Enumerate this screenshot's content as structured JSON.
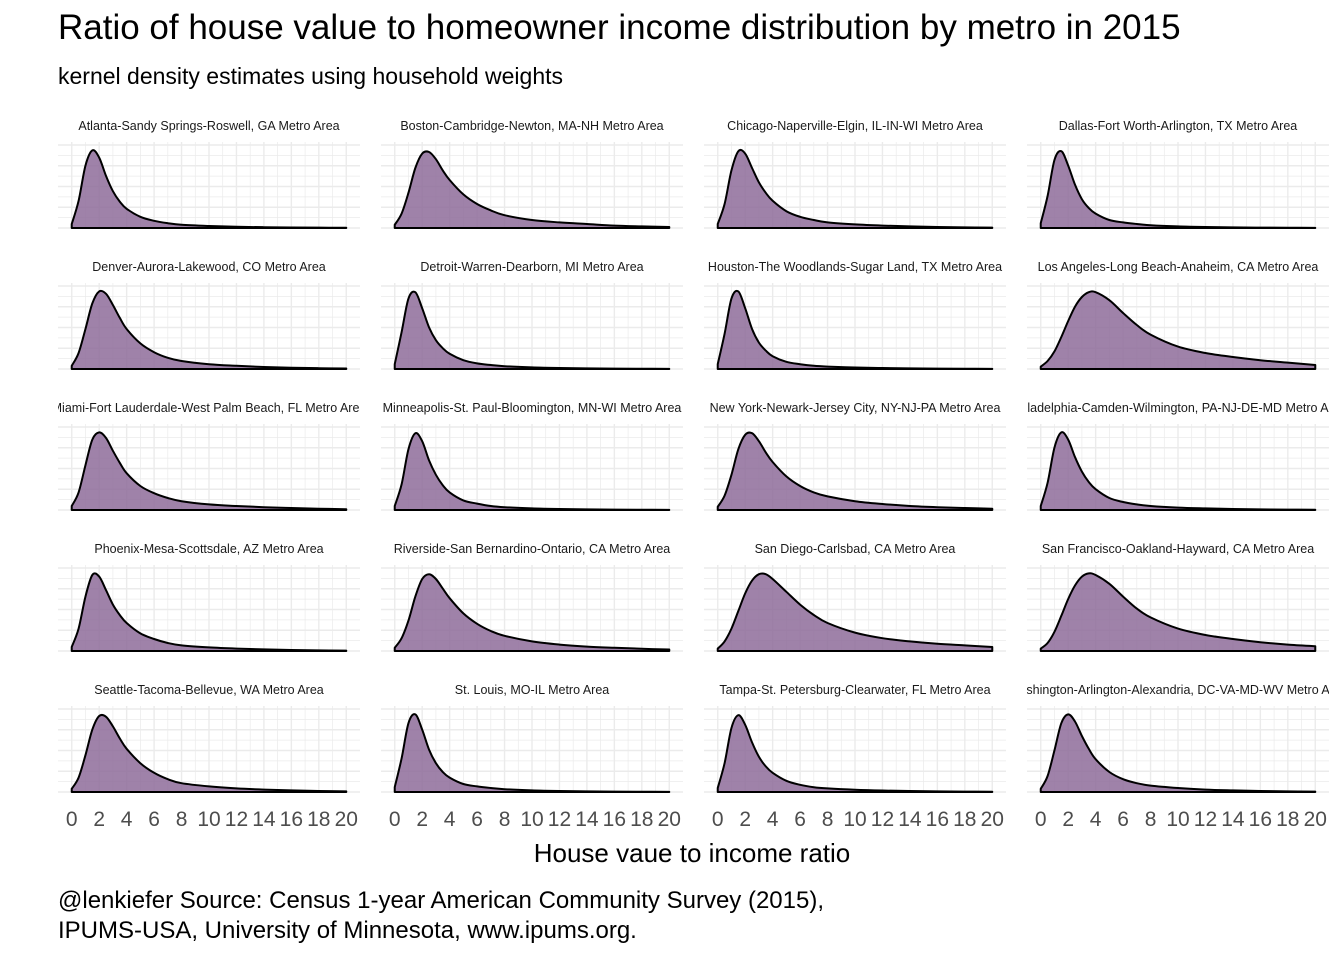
{
  "chart_data": {
    "type": "area",
    "title": "Ratio of house value to homeowner income distribution by metro in 2015",
    "subtitle": "kernel density estimates using household weights",
    "xlabel": "House vaue to income ratio",
    "ylabel": "",
    "xlim": [
      -1,
      21
    ],
    "x_ticks": [
      0,
      2,
      4,
      6,
      8,
      10,
      12,
      14,
      16,
      18,
      20
    ],
    "grid": true,
    "legend": "none",
    "fill_color": "#8e6c9a",
    "line_color": "#000000",
    "grid_color": "#ebebeb",
    "caption": [
      "@lenkiefer Source: Census 1-year American Community Survey (2015),",
      "IPUMS-USA, University of Minnesota, www.ipums.org."
    ],
    "x": [
      0,
      0.5,
      1,
      1.5,
      2,
      2.5,
      3,
      3.5,
      4,
      5,
      6,
      7,
      8,
      10,
      12,
      14,
      16,
      18,
      20
    ],
    "panels": [
      {
        "name": "Atlanta-Sandy Springs-Roswell, GA Metro Area",
        "density": [
          0.05,
          0.34,
          0.78,
          0.97,
          0.88,
          0.65,
          0.46,
          0.33,
          0.24,
          0.14,
          0.09,
          0.06,
          0.04,
          0.025,
          0.015,
          0.01,
          0.006,
          0.004,
          0.003
        ]
      },
      {
        "name": "Boston-Cambridge-Newton, MA-NH Metro Area",
        "density": [
          0.04,
          0.18,
          0.44,
          0.75,
          0.93,
          0.95,
          0.86,
          0.72,
          0.6,
          0.42,
          0.3,
          0.22,
          0.16,
          0.1,
          0.07,
          0.05,
          0.03,
          0.02,
          0.012
        ]
      },
      {
        "name": "Chicago-Naperville-Elgin, IL-IN-WI Metro Area",
        "density": [
          0.05,
          0.3,
          0.72,
          0.96,
          0.93,
          0.75,
          0.57,
          0.44,
          0.34,
          0.21,
          0.14,
          0.1,
          0.07,
          0.045,
          0.03,
          0.02,
          0.013,
          0.008,
          0.005
        ]
      },
      {
        "name": "Dallas-Fort Worth-Arlington, TX Metro Area",
        "density": [
          0.06,
          0.4,
          0.85,
          0.96,
          0.78,
          0.54,
          0.36,
          0.25,
          0.18,
          0.1,
          0.07,
          0.05,
          0.035,
          0.02,
          0.012,
          0.008,
          0.005,
          0.003,
          0.002
        ]
      },
      {
        "name": "Denver-Aurora-Lakewood, CO Metro Area",
        "density": [
          0.04,
          0.2,
          0.5,
          0.82,
          0.97,
          0.94,
          0.8,
          0.64,
          0.5,
          0.32,
          0.21,
          0.14,
          0.1,
          0.06,
          0.04,
          0.025,
          0.015,
          0.01,
          0.006
        ]
      },
      {
        "name": "Detroit-Warren-Dearborn, MI Metro Area",
        "density": [
          0.06,
          0.46,
          0.88,
          0.96,
          0.76,
          0.52,
          0.36,
          0.26,
          0.19,
          0.11,
          0.07,
          0.05,
          0.035,
          0.02,
          0.012,
          0.008,
          0.005,
          0.003,
          0.002
        ]
      },
      {
        "name": "Houston-The Woodlands-Sugar Land, TX Metro Area",
        "density": [
          0.06,
          0.44,
          0.88,
          0.97,
          0.76,
          0.5,
          0.33,
          0.23,
          0.16,
          0.09,
          0.06,
          0.04,
          0.03,
          0.018,
          0.012,
          0.008,
          0.005,
          0.003,
          0.002
        ]
      },
      {
        "name": "Los Angeles-Long Beach-Anaheim, CA Metro Area",
        "density": [
          0.03,
          0.1,
          0.22,
          0.4,
          0.6,
          0.78,
          0.9,
          0.96,
          0.96,
          0.86,
          0.7,
          0.55,
          0.43,
          0.28,
          0.2,
          0.15,
          0.11,
          0.08,
          0.05
        ]
      },
      {
        "name": "Miami-Fort Lauderdale-West Palm Beach, FL Metro Area",
        "density": [
          0.05,
          0.22,
          0.56,
          0.88,
          0.97,
          0.9,
          0.74,
          0.59,
          0.46,
          0.3,
          0.21,
          0.15,
          0.11,
          0.07,
          0.05,
          0.035,
          0.025,
          0.016,
          0.01
        ]
      },
      {
        "name": "Minneapolis-St. Paul-Bloomington, MN-WI Metro Area",
        "density": [
          0.05,
          0.32,
          0.76,
          0.96,
          0.86,
          0.62,
          0.44,
          0.31,
          0.22,
          0.12,
          0.08,
          0.05,
          0.035,
          0.02,
          0.012,
          0.008,
          0.005,
          0.003,
          0.002
        ]
      },
      {
        "name": "New York-Newark-Jersey City, NY-NJ-PA Metro Area",
        "density": [
          0.04,
          0.18,
          0.44,
          0.76,
          0.94,
          0.96,
          0.86,
          0.72,
          0.6,
          0.42,
          0.3,
          0.22,
          0.17,
          0.11,
          0.075,
          0.05,
          0.035,
          0.025,
          0.016
        ]
      },
      {
        "name": "Philadelphia-Camden-Wilmington, PA-NJ-DE-MD Metro Area",
        "density": [
          0.05,
          0.34,
          0.78,
          0.97,
          0.88,
          0.66,
          0.48,
          0.35,
          0.26,
          0.15,
          0.1,
          0.07,
          0.05,
          0.03,
          0.02,
          0.013,
          0.008,
          0.005,
          0.003
        ]
      },
      {
        "name": "Phoenix-Mesa-Scottsdale, AZ Metro Area",
        "density": [
          0.05,
          0.28,
          0.68,
          0.95,
          0.93,
          0.76,
          0.58,
          0.45,
          0.35,
          0.22,
          0.15,
          0.1,
          0.07,
          0.045,
          0.03,
          0.02,
          0.013,
          0.008,
          0.005
        ]
      },
      {
        "name": "Riverside-San Bernardino-Ontario, CA Metro Area",
        "density": [
          0.04,
          0.16,
          0.38,
          0.68,
          0.9,
          0.96,
          0.9,
          0.78,
          0.66,
          0.47,
          0.34,
          0.25,
          0.19,
          0.12,
          0.08,
          0.055,
          0.04,
          0.028,
          0.018
        ]
      },
      {
        "name": "San Diego-Carlsbad, CA Metro Area",
        "density": [
          0.03,
          0.12,
          0.28,
          0.5,
          0.72,
          0.88,
          0.96,
          0.96,
          0.9,
          0.74,
          0.58,
          0.45,
          0.35,
          0.23,
          0.16,
          0.12,
          0.09,
          0.07,
          0.05
        ]
      },
      {
        "name": "San Francisco-Oakland-Hayward, CA Metro Area",
        "density": [
          0.03,
          0.1,
          0.24,
          0.44,
          0.65,
          0.82,
          0.93,
          0.97,
          0.95,
          0.84,
          0.68,
          0.53,
          0.42,
          0.28,
          0.2,
          0.15,
          0.11,
          0.08,
          0.06
        ]
      },
      {
        "name": "Seattle-Tacoma-Bellevue, WA Metro Area",
        "density": [
          0.04,
          0.18,
          0.46,
          0.78,
          0.95,
          0.94,
          0.82,
          0.67,
          0.54,
          0.36,
          0.24,
          0.16,
          0.11,
          0.07,
          0.045,
          0.03,
          0.02,
          0.013,
          0.008
        ]
      },
      {
        "name": "St. Louis, MO-IL Metro Area",
        "density": [
          0.06,
          0.42,
          0.86,
          0.97,
          0.78,
          0.53,
          0.36,
          0.25,
          0.18,
          0.1,
          0.07,
          0.05,
          0.035,
          0.02,
          0.012,
          0.008,
          0.005,
          0.003,
          0.002
        ]
      },
      {
        "name": "Tampa-St. Petersburg-Clearwater, FL Metro Area",
        "density": [
          0.05,
          0.36,
          0.8,
          0.96,
          0.84,
          0.62,
          0.44,
          0.32,
          0.24,
          0.14,
          0.09,
          0.06,
          0.045,
          0.028,
          0.018,
          0.012,
          0.008,
          0.005,
          0.003
        ]
      },
      {
        "name": "Washington-Arlington-Alexandria, DC-VA-MD-WV Metro Area",
        "density": [
          0.04,
          0.2,
          0.52,
          0.86,
          0.97,
          0.88,
          0.7,
          0.54,
          0.41,
          0.25,
          0.16,
          0.11,
          0.08,
          0.05,
          0.03,
          0.02,
          0.013,
          0.008,
          0.005
        ]
      }
    ]
  }
}
